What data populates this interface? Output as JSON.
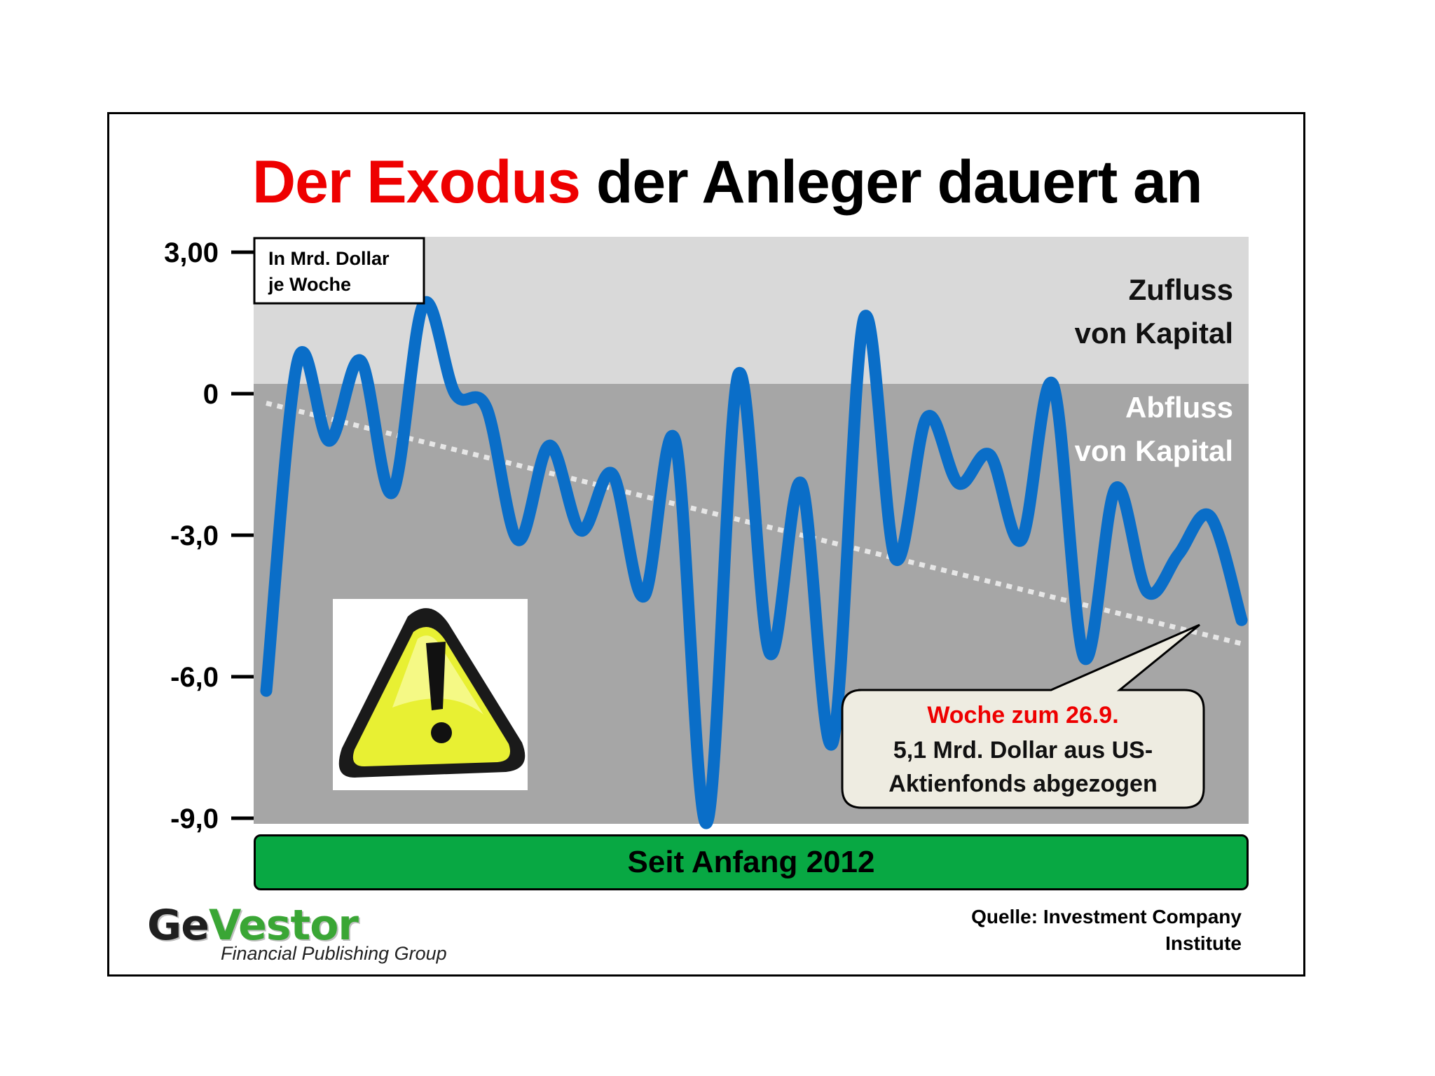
{
  "title": {
    "red": "Der Exodus",
    "black": "der Anleger dauert an"
  },
  "unit_note": {
    "line1": "In Mrd. Dollar",
    "line2": "je Woche"
  },
  "zones": {
    "inflow": {
      "line1": "Zufluss",
      "line2": "von Kapital"
    },
    "outflow": {
      "line1": "Abfluss",
      "line2": "von Kapital"
    }
  },
  "callout": {
    "heading": "Woche zum 26.9.",
    "line1": "5,1 Mrd. Dollar aus US-",
    "line2": "Aktienfonds abgezogen"
  },
  "period_label": "Seit Anfang 2012",
  "source": {
    "line1": "Quelle: Investment Company",
    "line2": "Institute"
  },
  "logo": {
    "ge": "Ge",
    "vestor": "Vestor",
    "tagline": "Financial Publishing Group"
  },
  "colors": {
    "line": "#0a6ec8",
    "trend": "#e6e6e6",
    "inflow_zone": "#d9d9d9",
    "outflow_zone": "#a6a6a6",
    "title_accent": "#ee0000",
    "period_bar": "#08a843",
    "warning_icon": "#e8f033"
  },
  "icons": [
    "warning-icon"
  ],
  "chart_data": {
    "type": "line",
    "title": "Der Exodus der Anleger dauert an",
    "ylabel": "In Mrd. Dollar je Woche",
    "xlabel": "Seit Anfang 2012",
    "ylim": [
      -9,
      3
    ],
    "yticks": [
      {
        "value": 3,
        "label": "3,00"
      },
      {
        "value": 0,
        "label": "0"
      },
      {
        "value": -3,
        "label": "-3,0"
      },
      {
        "value": -6,
        "label": "-6,0"
      },
      {
        "value": -9,
        "label": "-9,0"
      }
    ],
    "grid": false,
    "legend": "none",
    "series": [
      {
        "values": [
          -6.3,
          0.7,
          -1.0,
          0.7,
          -2.1,
          1.9,
          0.0,
          -0.3,
          -3.1,
          -1.1,
          -2.9,
          -1.7,
          -4.3,
          -1.0,
          -9.1,
          0.4,
          -5.5,
          -1.9,
          -7.4,
          1.6,
          -3.5,
          -0.5,
          -1.9,
          -1.3,
          -3.1,
          0.2,
          -5.6,
          -2.0,
          -4.2,
          -3.4,
          -2.6,
          -4.8
        ]
      }
    ],
    "trend": {
      "start": -0.2,
      "end": -5.3
    }
  }
}
